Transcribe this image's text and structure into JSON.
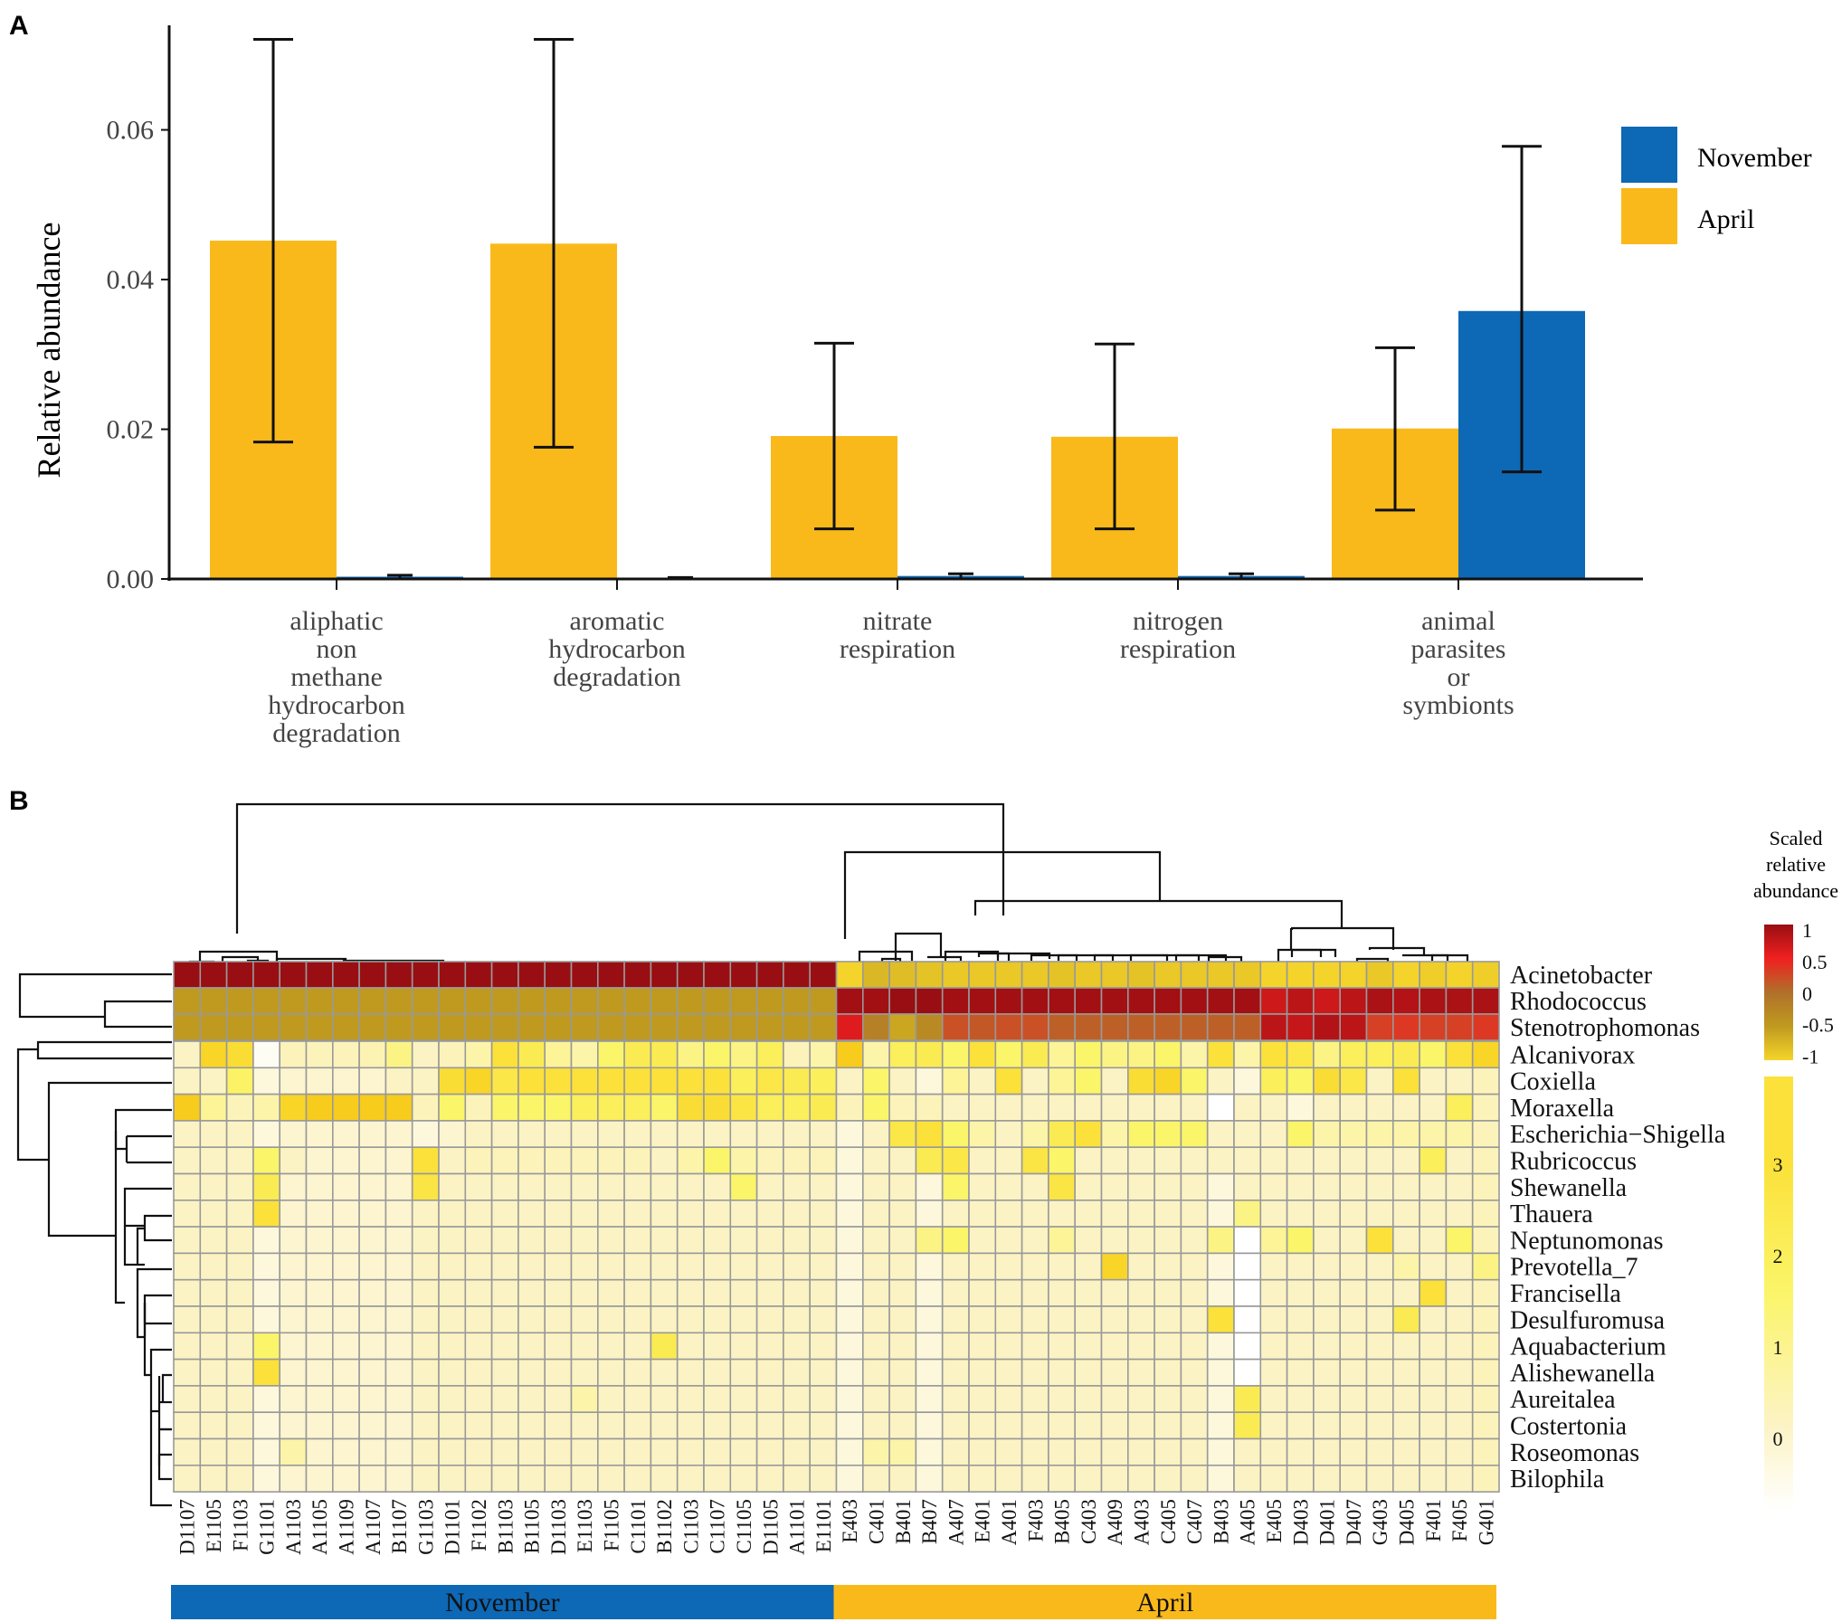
{
  "colors": {
    "november": "#0d68b5",
    "april": "#fab91b",
    "grid_border": "#999999",
    "axis": "#111111"
  },
  "panel_a": {
    "label": "A",
    "chart_data": {
      "type": "bar",
      "title": "",
      "ylabel": "Relative abundance",
      "xlabel": "",
      "ylim": [
        0,
        0.075
      ],
      "yticks": [
        "0.00",
        "0.02",
        "0.04",
        "0.06"
      ],
      "ytick_values": [
        0,
        0.02,
        0.04,
        0.06
      ],
      "categories": [
        [
          "aliphatic",
          "non",
          "methane",
          "hydrocarbon",
          "degradation"
        ],
        [
          "aromatic",
          "hydrocarbon",
          "degradation"
        ],
        [
          "nitrate",
          "respiration"
        ],
        [
          "nitrogen",
          "respiration"
        ],
        [
          "animal",
          "parasites",
          "or",
          "symbionts"
        ]
      ],
      "legend": {
        "position": "top-right",
        "entries": [
          "November",
          "April"
        ]
      },
      "series": [
        {
          "name": "April",
          "color": "#fab91b",
          "values": [
            0.0452,
            0.0448,
            0.0191,
            0.019,
            0.0201
          ],
          "err_low": [
            0.0183,
            0.0176,
            0.0067,
            0.0067,
            0.0092
          ],
          "err_high": [
            0.0721,
            0.0721,
            0.0315,
            0.0314,
            0.0309
          ]
        },
        {
          "name": "November",
          "color": "#0d68b5",
          "values": [
            0.0003,
            0.0001,
            0.0004,
            0.0004,
            0.0358
          ],
          "err_low": [
            0.0,
            0.0,
            0.0,
            0.0,
            0.0143
          ],
          "err_high": [
            0.0005,
            0.0002,
            0.0007,
            0.0007,
            0.0578
          ]
        }
      ]
    }
  },
  "panel_b": {
    "label": "B",
    "chart_data": {
      "type": "heatmap",
      "columns": [
        "D1107",
        "E1105",
        "F1103",
        "G1101",
        "A1103",
        "A1105",
        "A1109",
        "A1107",
        "B1107",
        "G1103",
        "D1101",
        "F1102",
        "B1103",
        "B1105",
        "D1103",
        "E1103",
        "F1105",
        "C1101",
        "B1102",
        "C1103",
        "C1107",
        "C1105",
        "D1105",
        "A1101",
        "E1101",
        "E403",
        "C401",
        "B401",
        "B407",
        "A407",
        "E401",
        "A401",
        "F403",
        "B405",
        "C403",
        "A409",
        "A403",
        "C405",
        "C407",
        "B403",
        "A405",
        "E405",
        "D403",
        "D401",
        "D407",
        "G403",
        "D405",
        "F401",
        "F405",
        "G401"
      ],
      "groups": [
        {
          "name": "November",
          "color": "#0d68b5",
          "count": 25
        },
        {
          "name": "April",
          "color": "#fab91b",
          "count": 25
        }
      ],
      "top_rows": [
        "Acinetobacter",
        "Rhodococcus",
        "Stenotrophomonas"
      ],
      "top_values": [
        [
          1,
          1,
          1,
          1,
          1,
          1,
          1,
          1,
          1,
          1,
          1,
          1,
          1,
          1,
          1,
          1,
          1,
          1,
          1,
          1,
          1,
          1,
          1,
          1,
          1,
          -1,
          -0.75,
          -0.8,
          -0.85,
          -0.9,
          -0.9,
          -0.9,
          -0.9,
          -0.85,
          -0.9,
          -0.9,
          -0.85,
          -0.9,
          -0.9,
          -0.9,
          -0.9,
          -1,
          -1,
          -1,
          -1,
          -0.9,
          -1,
          -0.95,
          -1,
          -0.95
        ],
        [
          -0.5,
          -0.5,
          -0.5,
          -0.5,
          -0.5,
          -0.5,
          -0.5,
          -0.5,
          -0.5,
          -0.5,
          -0.5,
          -0.5,
          -0.5,
          -0.5,
          -0.5,
          -0.5,
          -0.5,
          -0.5,
          -0.5,
          -0.5,
          -0.5,
          -0.5,
          -0.5,
          -0.5,
          -0.5,
          0.95,
          0.95,
          1,
          1,
          0.95,
          0.95,
          0.95,
          0.95,
          0.95,
          0.95,
          0.95,
          0.95,
          0.95,
          0.95,
          0.95,
          0.95,
          0.7,
          0.8,
          0.7,
          0.8,
          0.9,
          0.85,
          0.9,
          0.9,
          0.9
        ],
        [
          -0.5,
          -0.5,
          -0.5,
          -0.5,
          -0.5,
          -0.5,
          -0.5,
          -0.5,
          -0.5,
          -0.5,
          -0.5,
          -0.5,
          -0.5,
          -0.5,
          -0.5,
          -0.5,
          -0.5,
          -0.5,
          -0.5,
          -0.5,
          -0.5,
          -0.5,
          -0.5,
          -0.5,
          -0.5,
          0.6,
          -0.2,
          -0.6,
          -0.3,
          0.2,
          0.15,
          0.2,
          0.2,
          0.1,
          0.1,
          0.1,
          0.1,
          0.1,
          0.1,
          0.1,
          0.1,
          0.8,
          0.75,
          0.85,
          0.8,
          0.3,
          0.35,
          0.3,
          0.3,
          0.35
        ]
      ],
      "top_scale": {
        "title": [
          "Scaled",
          "relative",
          "abundance"
        ],
        "ticks": [
          "1",
          "0.5",
          "0",
          "-0.5",
          "-1"
        ],
        "tick_values": [
          1,
          0.5,
          0,
          -0.5,
          -1
        ]
      },
      "bottom_rows": [
        "Alcanivorax",
        "Coxiella",
        "Moraxella",
        "Escherichia−Shigella",
        "Rubricoccus",
        "Shewanella",
        "Thauera",
        "Neptunomonas",
        "Prevotella_7",
        "Francisella",
        "Desulfuromusa",
        "Aquabacterium",
        "Alishewanella",
        "Aureitalea",
        "Costertonia",
        "Roseomonas",
        "Bilophila"
      ],
      "bottom_scale": {
        "ticks": [
          "3",
          "2",
          "1",
          "0"
        ],
        "tick_values": [
          3,
          2,
          1,
          0
        ]
      },
      "bottom_values": [
        [
          0.5,
          2.8,
          2.6,
          0.1,
          0.6,
          0.6,
          0.6,
          0.7,
          1.2,
          0.5,
          0.6,
          0.8,
          2.5,
          2.0,
          1.0,
          0.8,
          1.5,
          2.0,
          2.0,
          1.2,
          1.5,
          1.2,
          1.8,
          0.6,
          0.8,
          3.0,
          0.8,
          1.8,
          2.0,
          1.5,
          2.5,
          1.5,
          2.0,
          1.0,
          1.5,
          1.2,
          1.2,
          1.5,
          0.8,
          2.5,
          0.8,
          2.5,
          2.2,
          1.2,
          1.8,
          1.8,
          2.0,
          1.5,
          2.5,
          2.8
        ],
        [
          0.5,
          0.5,
          1.6,
          0.3,
          0.4,
          0.4,
          0.4,
          0.4,
          0.5,
          0.5,
          2.6,
          2.8,
          2.2,
          2.5,
          2.5,
          2.5,
          2.5,
          2.5,
          2.5,
          2.5,
          2.5,
          1.8,
          2.2,
          2.0,
          1.8,
          0.5,
          1.5,
          0.5,
          0.3,
          1.0,
          0.5,
          2.5,
          0.5,
          1.0,
          1.5,
          0.5,
          2.6,
          2.8,
          1.5,
          0.5,
          0.3,
          1.8,
          1.5,
          2.6,
          2.2,
          0.5,
          2.5,
          0.5,
          0.5,
          0.6
        ],
        [
          3.0,
          1.0,
          0.6,
          0.8,
          2.8,
          3.0,
          3.0,
          3.0,
          3.0,
          0.6,
          1.5,
          0.6,
          1.5,
          1.5,
          1.5,
          1.8,
          1.8,
          1.8,
          1.5,
          2.6,
          2.6,
          2.3,
          1.8,
          1.8,
          2.0,
          0.6,
          1.5,
          0.6,
          0.6,
          0.5,
          0.5,
          0.5,
          0.5,
          0.5,
          0.5,
          0.5,
          0.5,
          0.5,
          0.5,
          0.0,
          0.5,
          0.5,
          0.3,
          0.5,
          0.5,
          0.5,
          0.5,
          0.5,
          1.8,
          0.6
        ],
        [
          0.5,
          0.5,
          0.5,
          0.3,
          0.4,
          0.4,
          0.4,
          0.4,
          0.4,
          0.3,
          0.4,
          0.5,
          0.5,
          0.5,
          0.5,
          0.5,
          0.5,
          0.5,
          0.5,
          0.5,
          0.5,
          0.5,
          0.5,
          0.5,
          0.5,
          0.3,
          0.5,
          2.2,
          2.5,
          1.5,
          0.8,
          0.5,
          0.8,
          2.0,
          2.5,
          0.8,
          1.5,
          1.5,
          1.5,
          0.5,
          0.5,
          0.5,
          1.5,
          0.8,
          0.8,
          0.8,
          0.8,
          0.8,
          0.8,
          0.6
        ],
        [
          0.5,
          0.5,
          0.5,
          1.5,
          0.5,
          0.4,
          0.4,
          0.4,
          0.4,
          2.5,
          0.5,
          0.6,
          0.6,
          0.6,
          0.6,
          0.6,
          0.6,
          0.6,
          0.5,
          0.8,
          1.5,
          0.8,
          0.6,
          0.6,
          0.6,
          0.3,
          0.5,
          0.5,
          2.0,
          2.2,
          0.5,
          0.5,
          2.3,
          1.5,
          0.5,
          0.5,
          0.5,
          0.5,
          0.5,
          0.5,
          0.5,
          0.5,
          0.5,
          0.5,
          0.5,
          0.5,
          0.5,
          1.8,
          0.5,
          0.6
        ],
        [
          0.5,
          0.5,
          0.5,
          2.0,
          0.4,
          0.4,
          0.4,
          0.4,
          0.4,
          2.3,
          0.5,
          0.5,
          0.5,
          0.5,
          0.5,
          0.5,
          0.5,
          0.5,
          0.5,
          0.5,
          0.5,
          1.5,
          0.5,
          0.5,
          0.5,
          0.3,
          0.5,
          0.5,
          0.3,
          1.5,
          0.5,
          0.5,
          0.5,
          2.3,
          0.5,
          0.5,
          0.5,
          0.5,
          0.5,
          0.3,
          0.5,
          0.5,
          0.5,
          0.5,
          0.5,
          0.5,
          0.5,
          0.5,
          0.5,
          0.6
        ],
        [
          0.5,
          0.5,
          0.5,
          2.5,
          0.4,
          0.4,
          0.4,
          0.4,
          0.4,
          0.5,
          0.5,
          0.5,
          0.5,
          0.5,
          0.5,
          0.5,
          0.5,
          0.5,
          0.5,
          0.5,
          0.5,
          0.5,
          0.5,
          0.5,
          0.5,
          0.3,
          0.5,
          0.5,
          0.3,
          0.5,
          0.5,
          0.5,
          0.5,
          0.5,
          0.5,
          0.5,
          0.5,
          0.5,
          0.5,
          0.3,
          1.2,
          0.5,
          0.5,
          0.5,
          0.5,
          0.5,
          0.5,
          0.5,
          0.5,
          0.6
        ],
        [
          0.5,
          0.5,
          0.5,
          0.3,
          0.4,
          0.4,
          0.4,
          0.4,
          0.4,
          0.5,
          0.5,
          0.5,
          0.5,
          0.5,
          0.5,
          0.5,
          0.5,
          0.5,
          0.5,
          0.5,
          0.5,
          0.5,
          0.5,
          0.5,
          0.5,
          0.3,
          0.5,
          0.5,
          1.2,
          1.5,
          0.5,
          0.5,
          0.5,
          1.0,
          0.5,
          0.5,
          0.5,
          0.5,
          0.5,
          1.2,
          0.0,
          1.0,
          1.5,
          0.5,
          0.5,
          2.5,
          0.5,
          0.5,
          1.5,
          0.6
        ],
        [
          0.5,
          0.5,
          0.5,
          0.3,
          0.4,
          0.4,
          0.4,
          0.4,
          0.4,
          0.5,
          0.5,
          0.5,
          0.5,
          0.5,
          0.5,
          0.5,
          0.5,
          0.5,
          0.5,
          0.5,
          0.5,
          0.5,
          0.5,
          0.5,
          0.5,
          0.3,
          0.5,
          0.5,
          0.3,
          0.5,
          0.5,
          0.5,
          0.5,
          0.5,
          0.5,
          2.8,
          0.5,
          0.5,
          0.5,
          0.3,
          0.0,
          0.5,
          0.5,
          0.5,
          0.5,
          0.5,
          0.8,
          0.5,
          0.5,
          1.2
        ],
        [
          0.5,
          0.5,
          0.5,
          0.3,
          0.4,
          0.4,
          0.4,
          0.4,
          0.4,
          0.5,
          0.5,
          0.5,
          0.5,
          0.5,
          0.5,
          0.5,
          0.5,
          0.5,
          0.5,
          0.5,
          0.5,
          0.5,
          0.5,
          0.5,
          0.5,
          0.3,
          0.5,
          0.5,
          0.3,
          0.5,
          0.5,
          0.5,
          0.5,
          0.5,
          0.5,
          0.5,
          0.5,
          0.5,
          0.5,
          0.3,
          0.0,
          0.5,
          0.5,
          0.5,
          0.5,
          0.5,
          0.5,
          2.5,
          0.5,
          0.6
        ],
        [
          0.5,
          0.5,
          0.5,
          0.3,
          0.4,
          0.4,
          0.4,
          0.4,
          0.4,
          0.5,
          0.5,
          0.5,
          0.5,
          0.5,
          0.5,
          0.5,
          0.5,
          0.5,
          0.5,
          0.5,
          0.5,
          0.5,
          0.5,
          0.5,
          0.5,
          0.3,
          0.5,
          0.5,
          0.3,
          0.5,
          0.5,
          0.5,
          0.5,
          0.5,
          0.5,
          0.5,
          0.5,
          0.5,
          0.5,
          2.5,
          0.0,
          0.5,
          0.5,
          0.5,
          0.5,
          0.5,
          2.0,
          0.5,
          0.5,
          0.6
        ],
        [
          0.5,
          0.5,
          0.5,
          1.5,
          0.4,
          0.4,
          0.4,
          0.4,
          0.4,
          0.5,
          0.5,
          0.5,
          0.5,
          0.5,
          0.5,
          0.5,
          0.5,
          0.5,
          2.0,
          0.5,
          0.5,
          0.5,
          0.5,
          0.5,
          0.5,
          0.3,
          0.5,
          0.5,
          0.3,
          0.5,
          0.5,
          0.5,
          0.5,
          0.5,
          0.5,
          0.5,
          0.5,
          0.5,
          0.5,
          0.3,
          0.0,
          0.5,
          0.5,
          0.5,
          0.5,
          0.5,
          0.5,
          0.5,
          0.5,
          0.6
        ],
        [
          0.5,
          0.5,
          0.5,
          2.5,
          0.4,
          0.4,
          0.4,
          0.4,
          0.4,
          0.5,
          0.5,
          0.5,
          0.5,
          0.5,
          0.5,
          0.5,
          0.5,
          0.5,
          0.5,
          0.5,
          0.5,
          0.5,
          0.5,
          0.5,
          0.5,
          0.3,
          0.5,
          0.5,
          0.3,
          0.5,
          0.5,
          0.5,
          0.5,
          0.5,
          0.5,
          0.5,
          0.5,
          0.5,
          0.5,
          0.3,
          0.0,
          0.5,
          0.5,
          0.5,
          0.5,
          0.5,
          0.5,
          0.5,
          0.5,
          0.6
        ],
        [
          0.5,
          0.5,
          0.5,
          0.3,
          0.4,
          0.4,
          0.4,
          0.4,
          0.4,
          0.5,
          0.5,
          0.5,
          0.5,
          0.5,
          0.5,
          0.8,
          0.5,
          0.5,
          0.5,
          0.5,
          0.5,
          0.5,
          0.5,
          0.5,
          0.5,
          0.3,
          0.5,
          0.5,
          0.3,
          0.5,
          0.5,
          0.5,
          0.5,
          0.5,
          0.5,
          0.5,
          0.5,
          0.5,
          0.5,
          0.3,
          2.0,
          0.5,
          0.5,
          0.5,
          0.5,
          0.5,
          0.5,
          0.5,
          0.5,
          0.6
        ],
        [
          0.5,
          0.5,
          0.5,
          0.3,
          0.4,
          0.4,
          0.4,
          0.4,
          0.4,
          0.5,
          0.5,
          0.5,
          0.5,
          0.5,
          0.5,
          0.5,
          0.5,
          0.5,
          0.5,
          0.5,
          0.5,
          0.5,
          0.5,
          0.5,
          0.5,
          0.3,
          0.5,
          0.5,
          0.3,
          0.5,
          0.5,
          0.5,
          0.5,
          0.5,
          0.5,
          0.5,
          0.5,
          0.5,
          0.5,
          0.3,
          2.0,
          0.5,
          0.5,
          0.5,
          0.5,
          0.5,
          0.5,
          0.5,
          0.5,
          0.6
        ],
        [
          0.5,
          0.5,
          0.5,
          0.3,
          0.8,
          0.4,
          0.4,
          0.4,
          0.4,
          0.5,
          0.5,
          0.5,
          0.5,
          0.5,
          0.5,
          0.5,
          0.5,
          0.5,
          0.5,
          0.5,
          0.5,
          0.5,
          0.5,
          0.5,
          0.5,
          0.3,
          0.8,
          0.8,
          0.3,
          0.5,
          0.5,
          0.5,
          0.5,
          0.5,
          0.5,
          0.5,
          0.5,
          0.5,
          0.5,
          0.3,
          0.5,
          0.5,
          0.5,
          0.5,
          0.5,
          0.5,
          0.5,
          0.5,
          0.5,
          0.6
        ],
        [
          0.5,
          0.5,
          0.5,
          0.3,
          0.4,
          0.4,
          0.4,
          0.4,
          0.4,
          0.5,
          0.5,
          0.5,
          0.5,
          0.5,
          0.5,
          0.5,
          0.5,
          0.5,
          0.5,
          0.5,
          0.5,
          0.5,
          0.5,
          0.5,
          0.5,
          0.3,
          0.5,
          0.5,
          0.3,
          0.5,
          0.5,
          0.5,
          0.5,
          0.5,
          0.5,
          0.5,
          0.5,
          0.5,
          0.5,
          0.3,
          0.5,
          0.5,
          0.5,
          0.5,
          0.5,
          0.5,
          0.5,
          0.5,
          0.5,
          0.6
        ]
      ]
    }
  }
}
